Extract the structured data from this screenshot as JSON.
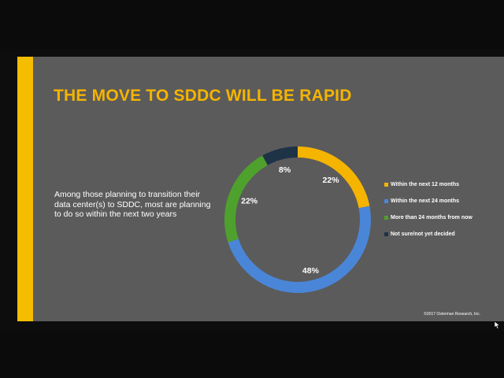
{
  "slide": {
    "title": "THE MOVE TO SDDC WILL BE RAPID",
    "description": "Among those planning to transition their data center(s) to SDDC, most are planning to do so within the next two years",
    "copyright": "©2017 Osterman Research, Inc.",
    "accent_color": "#f5bd00",
    "background_color": "#5b5b5b"
  },
  "chart_data": {
    "type": "pie",
    "style": "donut",
    "categories": [
      "Within the next 12 months",
      "Within the next 24 months",
      "More than 24 months from now",
      "Not sure/not yet decided"
    ],
    "values": [
      22,
      48,
      22,
      8
    ],
    "data_labels": [
      "22%",
      "48%",
      "22%",
      "8%"
    ],
    "colors": [
      "#f5b400",
      "#4a86d8",
      "#4ea12c",
      "#1f3347"
    ],
    "legend_placement": "right"
  }
}
